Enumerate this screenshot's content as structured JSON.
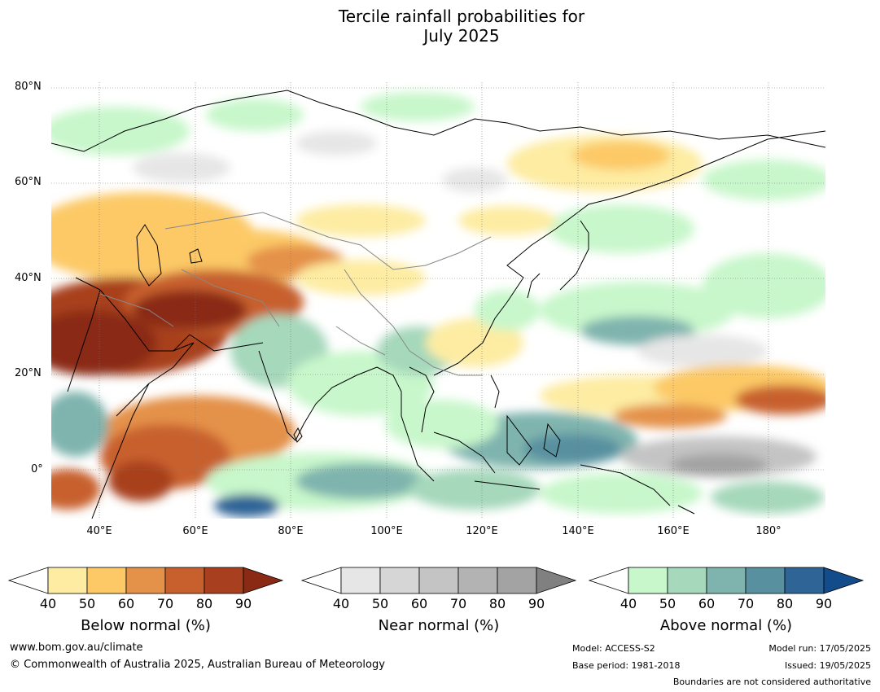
{
  "title_line1": "Tercile rainfall probabilities for",
  "title_line2": "July 2025",
  "map": {
    "lat_labels": [
      "80°N",
      "60°N",
      "40°N",
      "20°N",
      "0°"
    ],
    "lon_labels": [
      "40°E",
      "60°E",
      "80°E",
      "100°E",
      "120°E",
      "140°E",
      "160°E",
      "180°"
    ],
    "colors": {
      "below": [
        "#fdeca2",
        "#fcc966",
        "#e4914a",
        "#c8602e",
        "#a8401f",
        "#8a2a14"
      ],
      "near": [
        "#e6e6e6",
        "#d6d6d6",
        "#c4c4c4",
        "#b3b3b3",
        "#a3a3a3",
        "#808080"
      ],
      "above": [
        "#c8f7cb",
        "#a6d8bb",
        "#7fb4ae",
        "#5890a0",
        "#2f6496",
        "#124c8a"
      ]
    }
  },
  "colorbars": [
    {
      "title": "Below normal (%)",
      "ticks": [
        "40",
        "50",
        "60",
        "70",
        "80",
        "90"
      ]
    },
    {
      "title": "Near normal (%)",
      "ticks": [
        "40",
        "50",
        "60",
        "70",
        "80",
        "90"
      ]
    },
    {
      "title": "Above normal (%)",
      "ticks": [
        "40",
        "50",
        "60",
        "70",
        "80",
        "90"
      ]
    }
  ],
  "footer": {
    "website": "www.bom.gov.au/climate",
    "copyright": "© Commonwealth of Australia 2025, Australian Bureau of Meteorology",
    "model": "Model: ACCESS-S2",
    "base_period": "Base period: 1981-2018",
    "model_run": "Model run: 17/05/2025",
    "issued": "Issued: 19/05/2025",
    "disclaimer": "Boundaries are not considered authoritative"
  }
}
